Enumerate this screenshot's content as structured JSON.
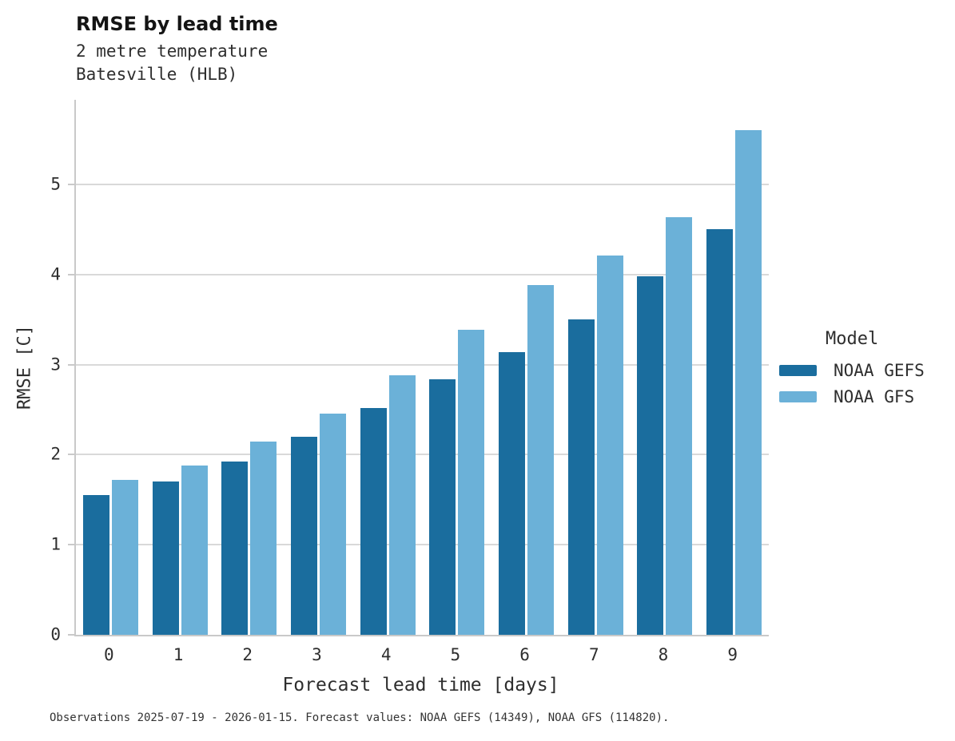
{
  "header": {
    "title": "RMSE by lead time",
    "subtitle_line1": "2 metre temperature",
    "subtitle_line2": "Batesville (HLB)"
  },
  "legend": {
    "title": "Model"
  },
  "footer": {
    "caption": "Observations 2025-07-19 - 2026-01-15. Forecast values: NOAA GEFS (14349), NOAA GFS (114820)."
  },
  "colors": {
    "gefs_dark_blue": "#1a6d9e",
    "gfs_light_blue": "#6bb1d8",
    "gridline": "#d9d9d9",
    "spine": "#c9c9c9",
    "text": "#2e2e2e"
  },
  "chart_data": {
    "type": "bar",
    "title": "RMSE by lead time",
    "subtitle": [
      "2 metre temperature",
      "Batesville (HLB)"
    ],
    "xlabel": "Forecast lead time [days]",
    "ylabel": "RMSE [C]",
    "categories": [
      "0",
      "1",
      "2",
      "3",
      "4",
      "5",
      "6",
      "7",
      "8",
      "9"
    ],
    "yticks": [
      0,
      1,
      2,
      3,
      4,
      5
    ],
    "ylim": [
      0,
      5.94
    ],
    "grid": "horizontal",
    "legend_position": "right",
    "legend_title": "Model",
    "series": [
      {
        "name": "NOAA GEFS",
        "color": "#1a6d9e",
        "values": [
          1.55,
          1.7,
          1.92,
          2.2,
          2.52,
          2.84,
          3.14,
          3.5,
          3.98,
          4.5
        ]
      },
      {
        "name": "NOAA GFS",
        "color": "#6bb1d8",
        "values": [
          1.72,
          1.88,
          2.15,
          2.46,
          2.88,
          3.39,
          3.88,
          4.21,
          4.64,
          5.6
        ]
      }
    ]
  }
}
